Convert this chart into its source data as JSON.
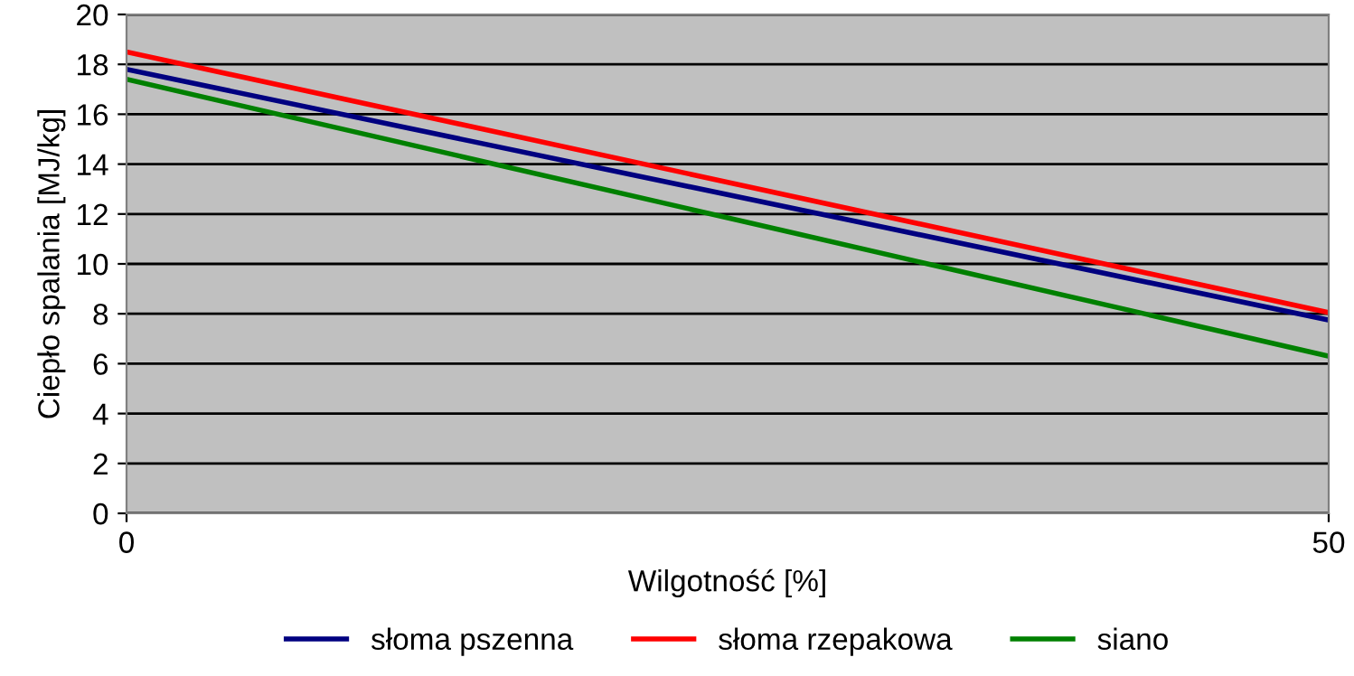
{
  "chart_data": {
    "type": "line",
    "xlabel": "Wilgotność [%]",
    "ylabel": "Ciepło spalania [MJ/kg]",
    "x": [
      0,
      50
    ],
    "series": [
      {
        "name": "słoma pszenna",
        "color": "#000080",
        "values": [
          17.8,
          7.75
        ]
      },
      {
        "name": "słoma rzepakowa",
        "color": "#ff0000",
        "values": [
          18.5,
          8.05
        ]
      },
      {
        "name": "siano",
        "color": "#008000",
        "values": [
          17.4,
          6.3
        ]
      }
    ],
    "xlim": [
      0,
      50
    ],
    "xticks": [
      0,
      50
    ],
    "ylim": [
      0,
      20
    ],
    "yticks": [
      0,
      2,
      4,
      6,
      8,
      10,
      12,
      14,
      16,
      18,
      20
    ],
    "grid": "y",
    "legend": "bottom",
    "marker": "none",
    "line_style": "solid"
  }
}
